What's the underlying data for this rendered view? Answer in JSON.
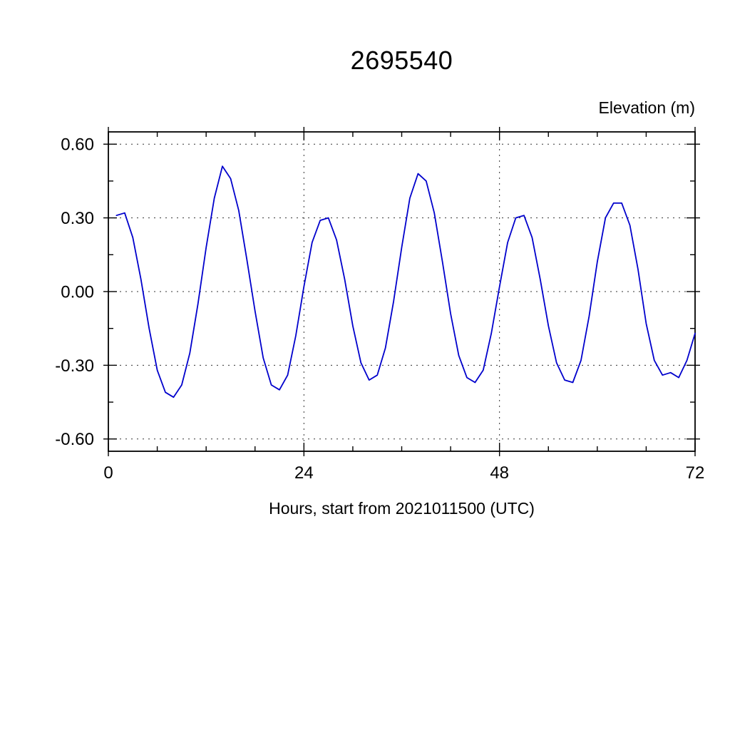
{
  "chart_data": {
    "type": "line",
    "title": "2695540",
    "ylabel": "Elevation (m)",
    "xlabel": "Hours, start from 2021011500 (UTC)",
    "xlim": [
      0,
      72
    ],
    "ylim": [
      -0.65,
      0.65
    ],
    "xticks": [
      0,
      24,
      48,
      72
    ],
    "xtick_labels": [
      "0",
      "24",
      "48",
      "72"
    ],
    "yticks": [
      0.6,
      0.3,
      0.0,
      -0.3,
      -0.6
    ],
    "ytick_labels": [
      "0.60",
      "0.30",
      "0.00",
      "-0.30",
      "-0.60"
    ],
    "x_gridlines": [
      24,
      48
    ],
    "y_gridlines": [
      0.6,
      0.3,
      0.0,
      -0.3,
      -0.6
    ],
    "x_minor_step": 6,
    "y_minor_step": 0.15,
    "grid_on": true,
    "legend": "none",
    "line_color": "#0000cc",
    "axis_color": "#000000",
    "series": [
      {
        "name": "elevation",
        "x": [
          1,
          2,
          3,
          4,
          5,
          6,
          7,
          8,
          9,
          10,
          11,
          12,
          13,
          14,
          15,
          16,
          17,
          18,
          19,
          20,
          21,
          22,
          23,
          24,
          25,
          26,
          27,
          28,
          29,
          30,
          31,
          32,
          33,
          34,
          35,
          36,
          37,
          38,
          39,
          40,
          41,
          42,
          43,
          44,
          45,
          46,
          47,
          48,
          49,
          50,
          51,
          52,
          53,
          54,
          55,
          56,
          57,
          58,
          59,
          60,
          61,
          62,
          63,
          64,
          65,
          66,
          67,
          68,
          69,
          70,
          71,
          72
        ],
        "y": [
          0.31,
          0.32,
          0.22,
          0.05,
          -0.15,
          -0.32,
          -0.41,
          -0.43,
          -0.38,
          -0.25,
          -0.05,
          0.18,
          0.38,
          0.51,
          0.46,
          0.33,
          0.13,
          -0.08,
          -0.27,
          -0.38,
          -0.4,
          -0.34,
          -0.18,
          0.02,
          0.2,
          0.29,
          0.3,
          0.21,
          0.05,
          -0.14,
          -0.29,
          -0.36,
          -0.34,
          -0.23,
          -0.04,
          0.18,
          0.38,
          0.48,
          0.45,
          0.32,
          0.12,
          -0.09,
          -0.26,
          -0.35,
          -0.37,
          -0.32,
          -0.17,
          0.02,
          0.2,
          0.3,
          0.31,
          0.22,
          0.05,
          -0.14,
          -0.29,
          -0.36,
          -0.37,
          -0.28,
          -0.1,
          0.12,
          0.3,
          0.36,
          0.36,
          0.27,
          0.09,
          -0.13,
          -0.28,
          -0.34,
          -0.33,
          -0.35,
          -0.28,
          -0.17
        ]
      }
    ]
  }
}
